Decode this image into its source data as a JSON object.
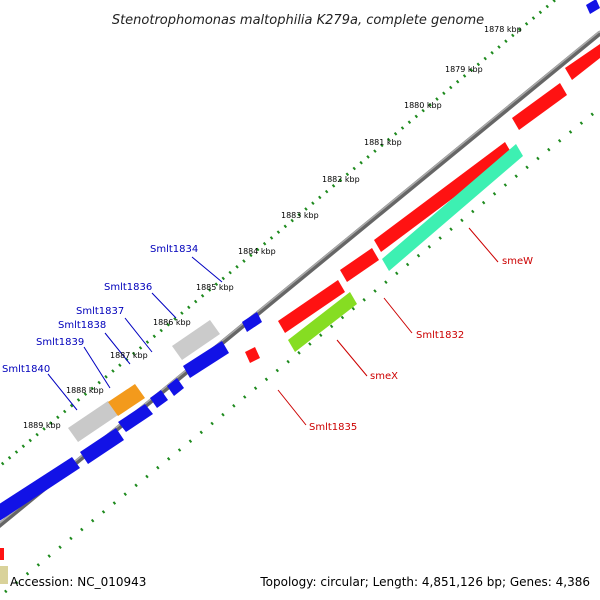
{
  "title": "Stenotrophomonas maltophilia K279a, complete genome",
  "footer": {
    "accession": "Accession: NC_010943",
    "summary": "Topology: circular; Length: 4,851,126 bp; Genes: 4,386"
  },
  "ticks": [
    {
      "label": "1878 kbp"
    },
    {
      "label": "1879 kbp"
    },
    {
      "label": "1880 kbp"
    },
    {
      "label": "1881 kbp"
    },
    {
      "label": "1882 kbp"
    },
    {
      "label": "1883 kbp"
    },
    {
      "label": "1884 kbp"
    },
    {
      "label": "1885 kbp"
    },
    {
      "label": "1886 kbp"
    },
    {
      "label": "1887 kbp"
    },
    {
      "label": "1888 kbp"
    },
    {
      "label": "1889 kbp"
    }
  ],
  "gene_labels": {
    "blue": [
      "Smlt1834",
      "Smlt1836",
      "Smlt1837",
      "Smlt1838",
      "Smlt1839",
      "Smlt1840"
    ],
    "red": [
      "smeW",
      "Smlt1832",
      "smeX",
      "Smlt1835"
    ]
  },
  "colors": {
    "forward_strand": "#1010e0",
    "reverse_strand": "#ff1010",
    "pseudo_gene": "#c8c8c8",
    "orange_gene": "#f59a1a",
    "smeW_feature": "#40f0b0",
    "smeX_feature": "#88dd22",
    "backbone": "#777777",
    "tick_marks": "#228822"
  }
}
